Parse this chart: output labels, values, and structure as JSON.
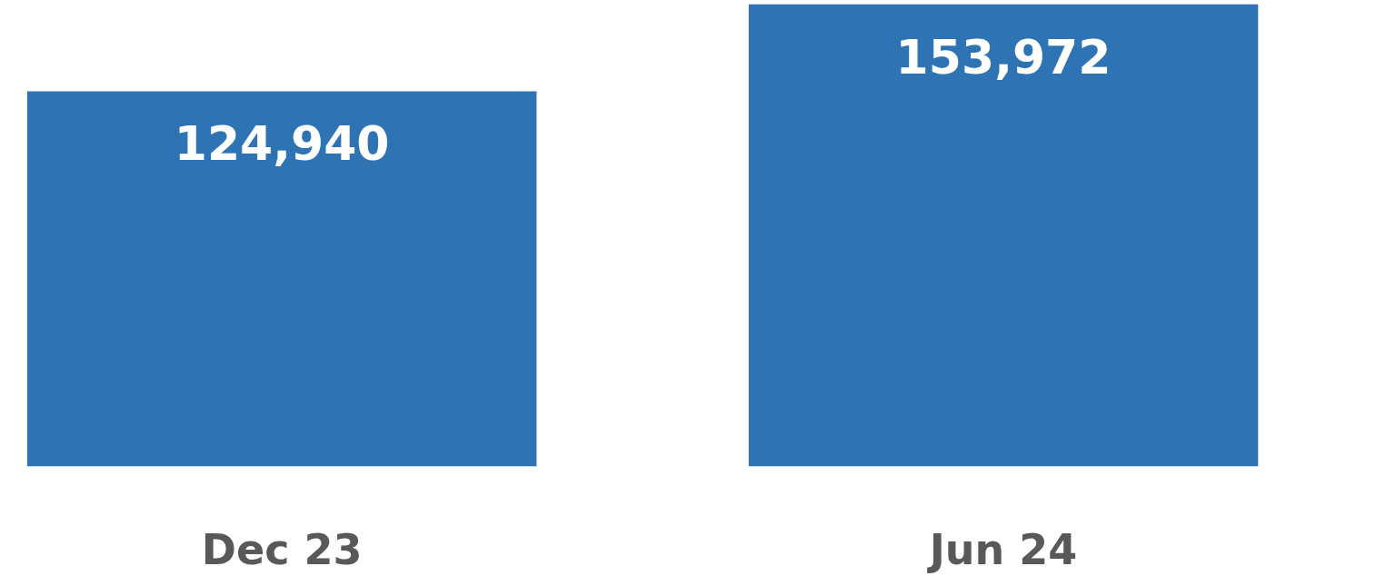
{
  "chart_data": {
    "type": "bar",
    "categories": [
      "Dec 23",
      "Jun 24"
    ],
    "values": [
      124940,
      153972
    ],
    "value_labels": [
      "124,940",
      "153,972"
    ],
    "color": "#2e74b5",
    "grid": false
  }
}
